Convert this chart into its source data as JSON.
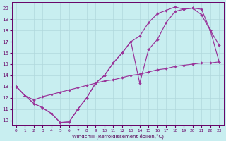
{
  "bg_color": "#c8eef0",
  "grid_color": "#b0d8dc",
  "line_color": "#993399",
  "xlabel": "Windchill (Refroidissement éolien,°C)",
  "xlim": [
    -0.5,
    23.5
  ],
  "ylim": [
    9.5,
    20.5
  ],
  "xticks": [
    0,
    1,
    2,
    3,
    4,
    5,
    6,
    7,
    8,
    9,
    10,
    11,
    12,
    13,
    14,
    15,
    16,
    17,
    18,
    19,
    20,
    21,
    22,
    23
  ],
  "yticks": [
    10,
    11,
    12,
    13,
    14,
    15,
    16,
    17,
    18,
    19,
    20
  ],
  "curve1_x": [
    0,
    1,
    2,
    3,
    4,
    5,
    6,
    7,
    8,
    9,
    10,
    11,
    12,
    13,
    14,
    15,
    16,
    17,
    18,
    19,
    20,
    21,
    22,
    23
  ],
  "curve1_y": [
    13.0,
    12.2,
    11.5,
    11.1,
    10.6,
    9.8,
    9.85,
    11.0,
    12.0,
    13.3,
    14.0,
    15.1,
    16.0,
    17.0,
    13.3,
    16.3,
    17.2,
    18.7,
    19.7,
    19.9,
    20.0,
    19.9,
    18.0,
    16.7
  ],
  "curve2_x": [
    0,
    1,
    2,
    3,
    4,
    5,
    6,
    7,
    8,
    9,
    10,
    11,
    12,
    13,
    14,
    15,
    16,
    17,
    18,
    19,
    20,
    21,
    22,
    23
  ],
  "curve2_y": [
    13.0,
    12.2,
    11.5,
    11.1,
    10.6,
    9.8,
    9.85,
    11.0,
    12.0,
    13.3,
    14.0,
    15.1,
    16.0,
    17.0,
    17.5,
    18.7,
    19.5,
    19.8,
    20.1,
    19.9,
    20.0,
    19.4,
    18.0,
    15.2
  ],
  "line3_x": [
    0,
    1,
    2,
    3,
    4,
    5,
    6,
    7,
    8,
    9,
    10,
    11,
    12,
    13,
    14,
    15,
    16,
    17,
    18,
    19,
    20,
    21,
    22,
    23
  ],
  "line3_y": [
    13.0,
    12.2,
    11.8,
    12.1,
    12.3,
    12.5,
    12.7,
    12.9,
    13.1,
    13.3,
    13.5,
    13.6,
    13.8,
    14.0,
    14.1,
    14.3,
    14.5,
    14.6,
    14.8,
    14.9,
    15.0,
    15.1,
    15.1,
    15.2
  ]
}
